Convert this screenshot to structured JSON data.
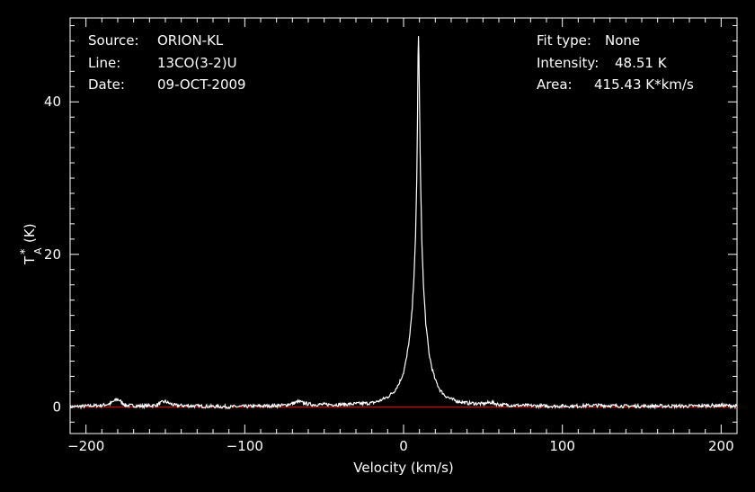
{
  "chart_data": {
    "type": "line",
    "xlabel": "Velocity (km/s)",
    "ylabel_main": "T",
    "ylabel_sup": "*",
    "ylabel_sub": "A",
    "ylabel_unit": "(K)",
    "xlim": [
      -210,
      210
    ],
    "ylim": [
      -3.5,
      51
    ],
    "xticks": [
      -200,
      -100,
      0,
      100,
      200
    ],
    "xtick_labels": [
      "−200",
      "−100",
      "0",
      "100",
      "200"
    ],
    "yticks": [
      0,
      20,
      40
    ],
    "ytick_labels": [
      "0",
      "20",
      "40"
    ],
    "baseline": 0,
    "baseline_color": "#ff0000",
    "line_color": "#ffffff",
    "background": "#000000",
    "grid": false,
    "info_left": [
      {
        "key": "Source:",
        "value": "ORION-KL"
      },
      {
        "key": "Line:",
        "value": "13CO(3-2)U"
      },
      {
        "key": "Date:",
        "value": "09-OCT-2009"
      }
    ],
    "info_right": [
      {
        "key": "Fit type:",
        "value": "None"
      },
      {
        "key": "Intensity:",
        "value": "48.51 K"
      },
      {
        "key": "Area:",
        "value": "415.43 K*km/s"
      }
    ],
    "series": [
      {
        "x": [
          -210,
          -200,
          -190,
          -185,
          -182,
          -180,
          -178,
          -175,
          -165,
          -156,
          -152,
          -150,
          -148,
          -144,
          -130,
          -110,
          -90,
          -75,
          -69,
          -66,
          -63,
          -58,
          -50,
          -40,
          -30,
          -20,
          -15,
          -10,
          -6,
          -3,
          0,
          2,
          4,
          5.5,
          6.5,
          7.5,
          8.3,
          8.8,
          9.1,
          9.4,
          9.7,
          10,
          10.5,
          11.5,
          12.5,
          14,
          16,
          18,
          20,
          23,
          26,
          30,
          35,
          40,
          50,
          55,
          60,
          70,
          90,
          110,
          120,
          140,
          160,
          180,
          200,
          210
        ],
        "y": [
          0.0,
          0.1,
          0.2,
          0.4,
          0.8,
          1.0,
          0.7,
          0.2,
          0.1,
          0.2,
          0.6,
          0.7,
          0.5,
          0.2,
          0.1,
          0.0,
          0.1,
          0.2,
          0.5,
          0.7,
          0.5,
          0.3,
          0.3,
          0.3,
          0.4,
          0.5,
          0.8,
          1.3,
          2.0,
          3.0,
          4.5,
          6.5,
          9.5,
          13,
          17,
          22,
          30,
          38,
          46,
          48.5,
          46,
          40,
          32,
          22,
          16,
          11,
          7,
          5,
          3.5,
          2.2,
          1.5,
          1.0,
          0.7,
          0.5,
          0.4,
          0.6,
          0.3,
          0.2,
          0.1,
          0.1,
          0.2,
          0.1,
          0.1,
          0.1,
          0.2,
          0.1
        ]
      }
    ]
  }
}
